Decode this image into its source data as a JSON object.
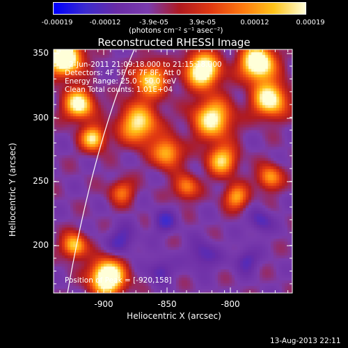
{
  "colors": {
    "background": "#000000",
    "foreground": "#ffffff",
    "ramp": [
      "#0000ff",
      "#3d2bd0",
      "#6a2ca6",
      "#7b3cae",
      "#b01a20",
      "#e23a12",
      "#ff7a10",
      "#ffc41a",
      "#ffffd8"
    ]
  },
  "colorbar": {
    "ticks": [
      "-0.00019",
      "-0.00012",
      "-3.9e-05",
      "3.9e-05",
      "0.00012",
      "0.00019"
    ],
    "unit": "(photons cm⁻² s⁻¹ asec⁻²)"
  },
  "chart_data": {
    "type": "heatmap",
    "title": "Reconstructed RHESSI Image",
    "xlabel": "Heliocentric X (arcsec)",
    "ylabel": "Heliocentric Y (arcsec)",
    "xlim": [
      -944,
      -850
    ],
    "ylim": [
      158,
      352
    ],
    "x_ticks": [
      "-900",
      "-850",
      "-800"
    ],
    "y_ticks": [
      "350",
      "300",
      "250",
      "200"
    ],
    "colorbar_range": [
      -0.00019,
      0.00019
    ],
    "annotations": {
      "time": "2-Jun-2011 21:09:18.000 to 21:15:18.000",
      "detectors": "Detectors: 4F 5F 6F 7F 8F, Att 0",
      "energy": "Energy Range: 25.0 - 50.0 keV",
      "clean": "Clean     Total counts: 1.01E+04",
      "peak": "Position of Peak = [-920,158]"
    }
  },
  "footer": "13-Aug-2013 22:11"
}
